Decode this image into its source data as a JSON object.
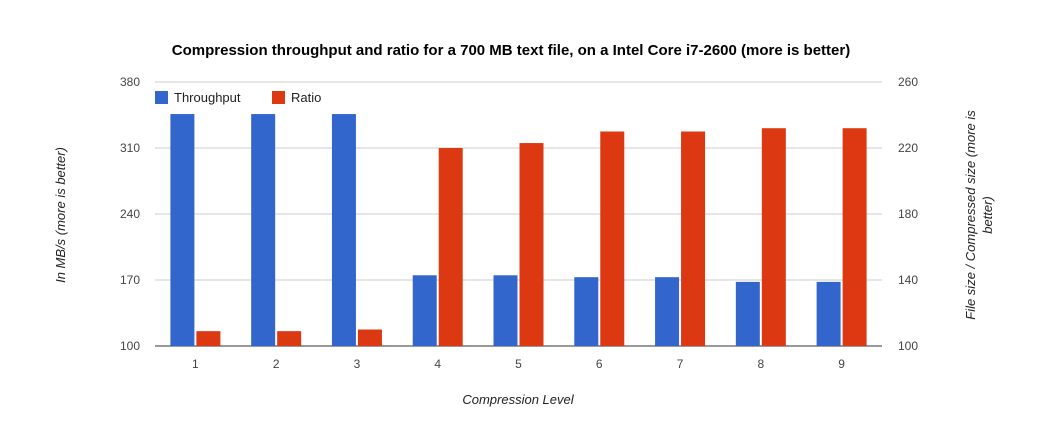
{
  "chart_data": {
    "type": "bar",
    "title": "Compression throughput and ratio for a 700 MB text file, on a Intel Core i7-2600 (more is better)",
    "xlabel": "Compression Level",
    "ylabel_left": "In MB/s (more is better)",
    "ylabel_right_line1": "File size / Compressed size (more is",
    "ylabel_right_line2": "better)",
    "categories": [
      "1",
      "2",
      "3",
      "4",
      "5",
      "6",
      "7",
      "8",
      "9"
    ],
    "y_left": {
      "min": 100,
      "max": 380,
      "ticks": [
        "100",
        "170",
        "240",
        "310",
        "380"
      ]
    },
    "y_right": {
      "min": 100,
      "max": 260,
      "ticks": [
        "100",
        "140",
        "180",
        "220",
        "260"
      ]
    },
    "grid": true,
    "legend": "top-left",
    "series": [
      {
        "name": "Throughput",
        "axis": "left",
        "color": "#3366cc",
        "values": [
          346,
          346,
          346,
          175,
          175,
          173,
          173,
          168,
          168
        ]
      },
      {
        "name": "Ratio",
        "axis": "right",
        "color": "#dc3912",
        "values": [
          109,
          109,
          110,
          220,
          223,
          230,
          230,
          232,
          232
        ]
      }
    ]
  }
}
